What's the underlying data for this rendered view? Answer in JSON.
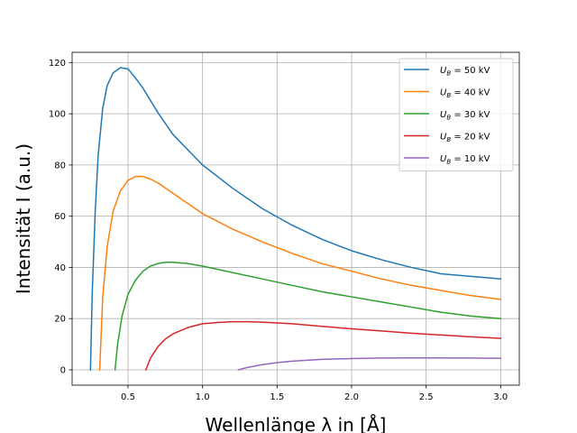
{
  "chart_data": {
    "type": "line",
    "title": "",
    "xlabel": "Wellenlänge λ in [Å]",
    "ylabel": "Intensität I (a.u.)",
    "xlim": [
      0.125,
      3.125
    ],
    "ylim": [
      -6,
      124
    ],
    "xticks": [
      0.5,
      1.0,
      1.5,
      2.0,
      2.5,
      3.0
    ],
    "xtick_labels": [
      "0.5",
      "1.0",
      "1.5",
      "2.0",
      "2.5",
      "3.0"
    ],
    "yticks": [
      0,
      20,
      40,
      60,
      80,
      100,
      120
    ],
    "ytick_labels": [
      "0",
      "20",
      "40",
      "60",
      "80",
      "100",
      "120"
    ],
    "grid": true,
    "legend_position": "top-right",
    "series": [
      {
        "name": "U_B = 50 kV",
        "label_var": "U",
        "label_sub": "B",
        "label_rest": " = 50 kV",
        "color": "#1f77b4",
        "x": [
          0.248,
          0.26,
          0.28,
          0.3,
          0.33,
          0.36,
          0.4,
          0.45,
          0.5,
          0.55,
          0.6,
          0.7,
          0.8,
          0.9,
          1.0,
          1.2,
          1.4,
          1.6,
          1.8,
          2.0,
          2.2,
          2.4,
          2.6,
          2.8,
          3.0
        ],
        "y": [
          0,
          30,
          62,
          84,
          102,
          111,
          116,
          118,
          117.5,
          114,
          110,
          100.5,
          92,
          86,
          80,
          71,
          63,
          56.5,
          51,
          46.5,
          43,
          40,
          37.5,
          36.5,
          35.5
        ]
      },
      {
        "name": "U_B = 40 kV",
        "label_var": "U",
        "label_sub": "B",
        "label_rest": " = 40 kV",
        "color": "#ff7f0e",
        "x": [
          0.31,
          0.33,
          0.36,
          0.4,
          0.45,
          0.5,
          0.55,
          0.6,
          0.65,
          0.7,
          0.8,
          0.9,
          1.0,
          1.2,
          1.4,
          1.6,
          1.8,
          2.0,
          2.2,
          2.4,
          2.6,
          2.8,
          3.0
        ],
        "y": [
          0,
          28,
          48,
          62,
          70,
          74,
          75.5,
          75.5,
          74.5,
          73,
          69,
          65,
          61,
          55,
          50,
          45.5,
          41.5,
          38.5,
          35.5,
          33,
          31,
          29,
          27.5
        ]
      },
      {
        "name": "U_B = 30 kV",
        "label_var": "U",
        "label_sub": "B",
        "label_rest": " = 30 kV",
        "color": "#2ca02c",
        "x": [
          0.413,
          0.43,
          0.46,
          0.5,
          0.55,
          0.6,
          0.65,
          0.7,
          0.75,
          0.8,
          0.9,
          1.0,
          1.2,
          1.4,
          1.6,
          1.8,
          2.0,
          2.2,
          2.4,
          2.6,
          2.8,
          3.0
        ],
        "y": [
          0,
          10,
          21,
          29.5,
          35,
          38.5,
          40.5,
          41.5,
          42,
          42,
          41.5,
          40.5,
          38,
          35.5,
          33,
          30.5,
          28.5,
          26.5,
          24.5,
          22.5,
          21,
          20
        ]
      },
      {
        "name": "U_B = 20 kV",
        "label_var": "U",
        "label_sub": "B",
        "label_rest": " = 20 kV",
        "color": "#d62728",
        "x": [
          0.62,
          0.65,
          0.7,
          0.75,
          0.8,
          0.9,
          1.0,
          1.1,
          1.2,
          1.3,
          1.4,
          1.6,
          1.8,
          2.0,
          2.2,
          2.4,
          2.6,
          2.8,
          3.0
        ],
        "y": [
          0,
          4.5,
          9,
          12,
          14,
          16.5,
          18,
          18.5,
          18.8,
          18.8,
          18.6,
          18,
          17,
          16,
          15.2,
          14.3,
          13.6,
          12.9,
          12.3
        ]
      },
      {
        "name": "U_B = 10 kV",
        "label_var": "U",
        "label_sub": "B",
        "label_rest": " = 10 kV",
        "color": "#9467bd",
        "x": [
          1.24,
          1.3,
          1.4,
          1.5,
          1.6,
          1.8,
          2.0,
          2.2,
          2.4,
          2.6,
          2.8,
          3.0
        ],
        "y": [
          0,
          0.9,
          2.0,
          2.8,
          3.4,
          4.1,
          4.4,
          4.6,
          4.65,
          4.65,
          4.6,
          4.5
        ]
      }
    ]
  }
}
